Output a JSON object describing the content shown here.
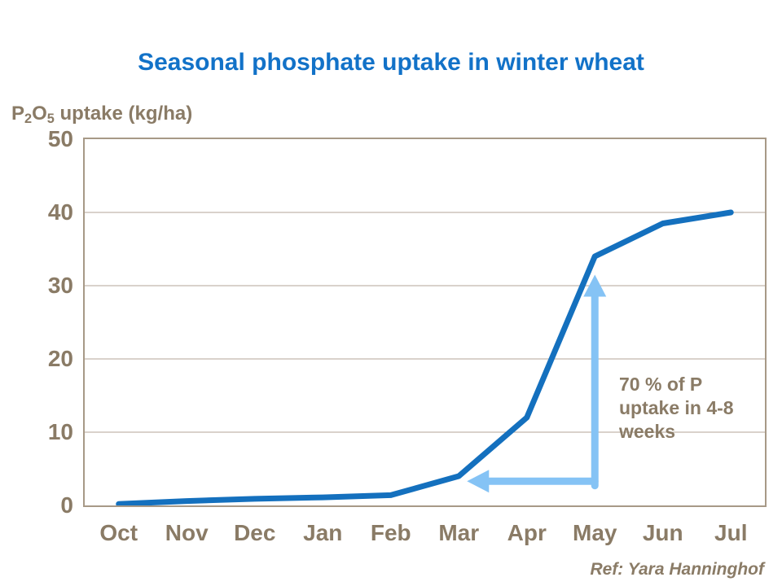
{
  "slide": {
    "title": "Seasonal phosphate uptake in winter wheat",
    "reference": "Ref: Yara Hanninghof"
  },
  "y_axis_label": {
    "p": "P",
    "sub_2": "2",
    "o": "O",
    "sub_5": "5",
    "rest": " uptake (kg/ha)"
  },
  "colors": {
    "title_blue": "#1272C8",
    "line_blue": "#1470BE",
    "arrow_light_blue": "#85C3F5",
    "text_brown": "#8A7B66",
    "plot_border": "#A79987",
    "gridline": "#B3A697"
  },
  "chart_data": {
    "type": "line",
    "title": "Seasonal phosphate uptake in winter wheat",
    "ylabel": "P2O5 uptake (kg/ha)",
    "xlabel": "",
    "categories": [
      "Oct",
      "Nov",
      "Dec",
      "Jan",
      "Feb",
      "Mar",
      "Apr",
      "May",
      "Jun",
      "Jul"
    ],
    "values": [
      0.2,
      0.6,
      0.9,
      1.1,
      1.4,
      4,
      12,
      34,
      38.5,
      40
    ],
    "ylim": [
      0,
      50
    ],
    "yticks": [
      0,
      10,
      20,
      30,
      40,
      50
    ],
    "grid": true,
    "legend": "none",
    "annotation": {
      "text": "70 % of P uptake in 4-8 weeks",
      "vertical_arrow": {
        "x_category": "May",
        "y_from": 2.7,
        "y_to": 31.5
      },
      "horizontal_arrow": {
        "y": 3.3,
        "x_from_category": "May",
        "x_to_category_coord": 5.12
      }
    }
  }
}
